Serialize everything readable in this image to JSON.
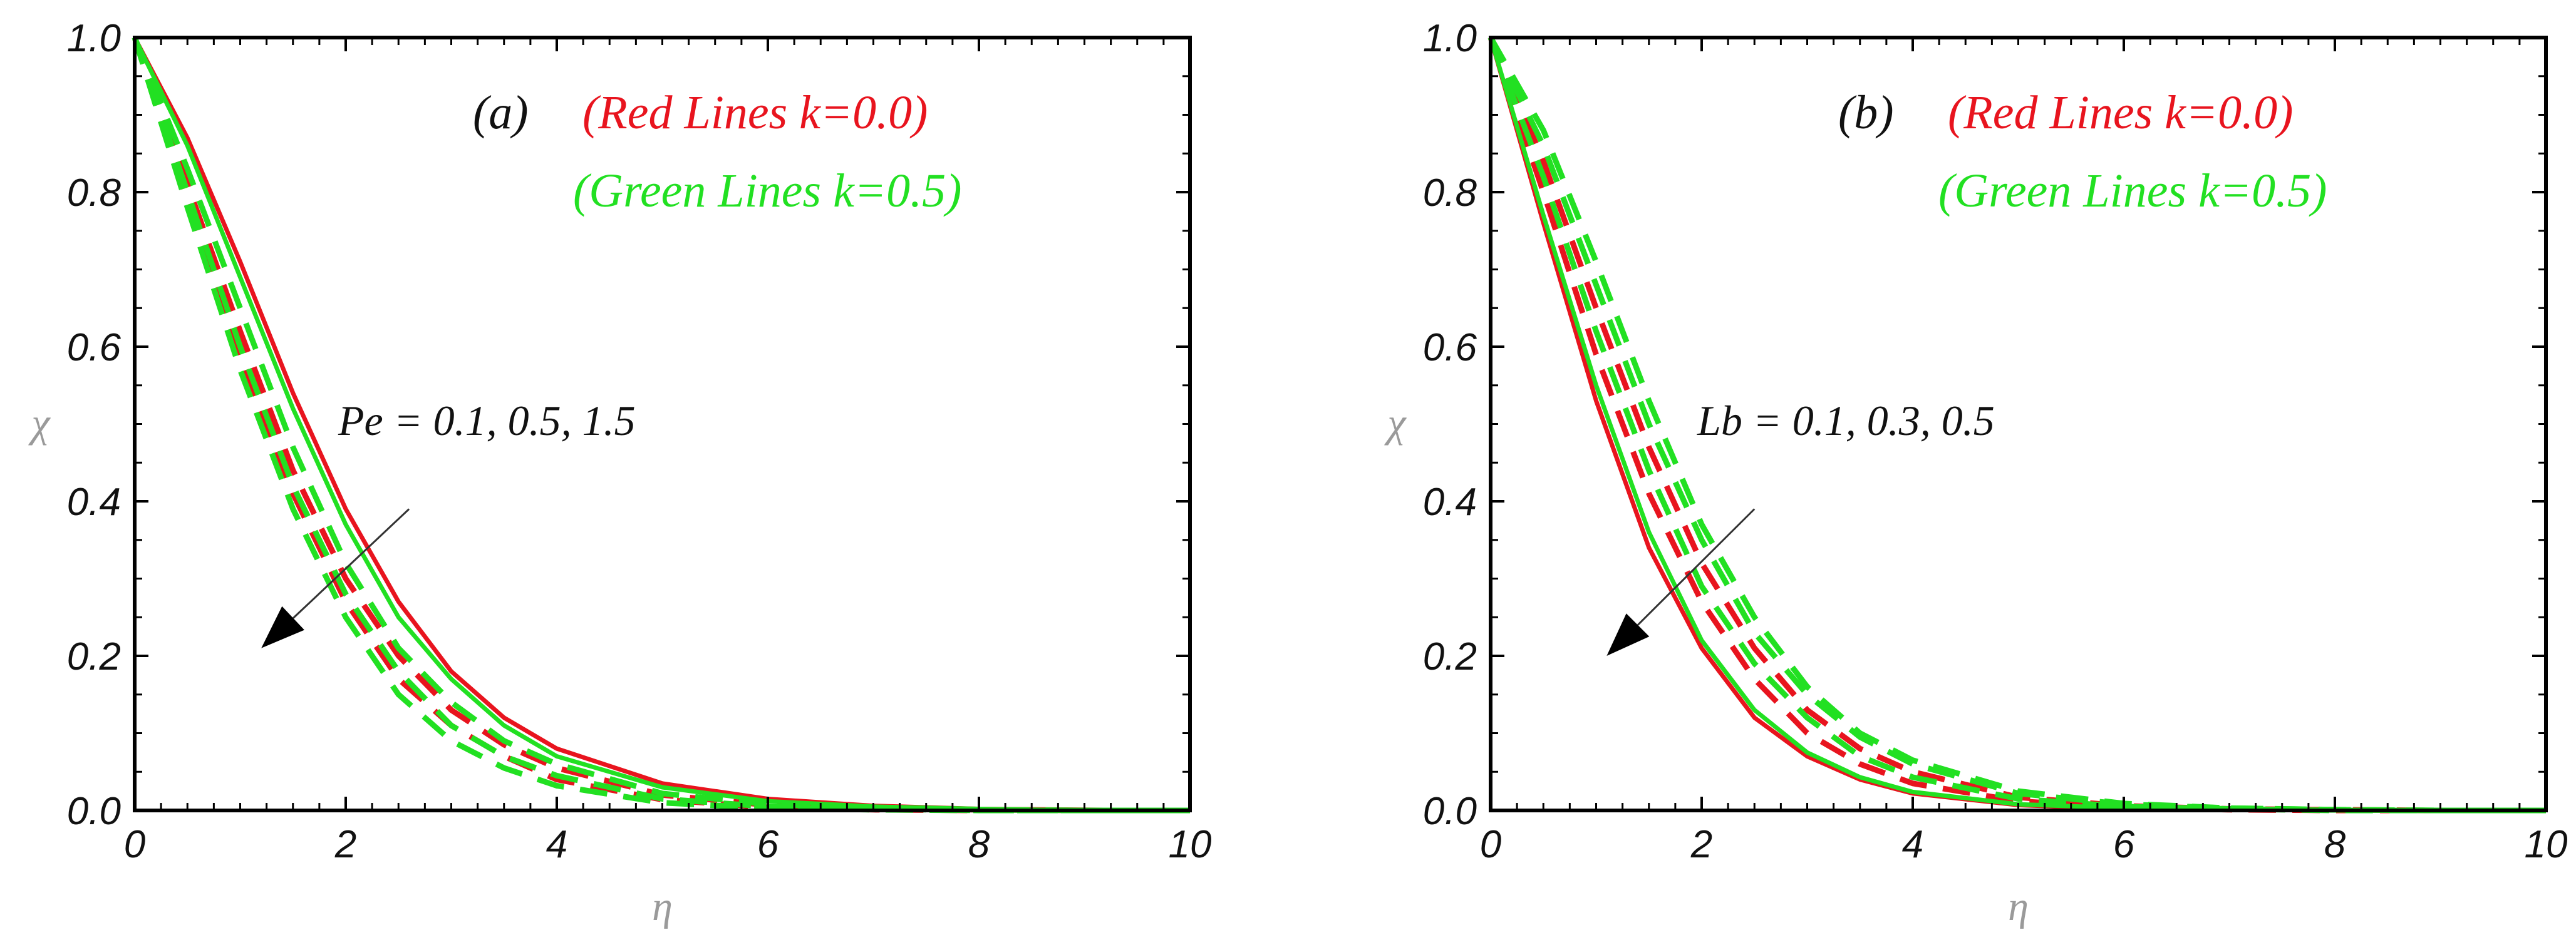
{
  "colors": {
    "red": "#e8141e",
    "green": "#22e022",
    "frame": "#000000",
    "arrow": "#333333"
  },
  "chart_data": [
    {
      "type": "line",
      "panel_label": "(a)",
      "xlabel": "η",
      "ylabel": "χ",
      "xlim": [
        0,
        10
      ],
      "ylim": [
        0,
        1
      ],
      "x_ticks": [
        "0",
        "2",
        "4",
        "6",
        "8",
        "10"
      ],
      "y_ticks": [
        "0.0",
        "0.2",
        "0.4",
        "0.6",
        "0.8",
        "1.0"
      ],
      "legend": {
        "red": "(Red Lines k=0.0)",
        "green": "(Green Lines k=0.5)"
      },
      "annotation": "Pe = 0.1, 0.5, 1.5",
      "annotation_arrow": {
        "from": [
          2.6,
          0.39
        ],
        "to": [
          1.2,
          0.21
        ]
      },
      "x": [
        0,
        0.5,
        1,
        1.5,
        2,
        2.5,
        3,
        3.5,
        4,
        5,
        6,
        7,
        8,
        9,
        10
      ],
      "series": [
        {
          "color": "red",
          "style": "solid",
          "values": [
            1.0,
            0.87,
            0.71,
            0.54,
            0.39,
            0.27,
            0.18,
            0.12,
            0.08,
            0.035,
            0.015,
            0.006,
            0.002,
            0.001,
            0.0
          ]
        },
        {
          "color": "red",
          "style": "dashed",
          "values": [
            1.0,
            0.81,
            0.62,
            0.44,
            0.3,
            0.2,
            0.13,
            0.085,
            0.055,
            0.02,
            0.007,
            0.002,
            0.001,
            0.0,
            0.0
          ]
        },
        {
          "color": "red",
          "style": "dashed",
          "values": [
            1.0,
            0.79,
            0.59,
            0.41,
            0.27,
            0.17,
            0.11,
            0.07,
            0.04,
            0.014,
            0.004,
            0.001,
            0.0,
            0.0,
            0.0
          ]
        },
        {
          "color": "green",
          "style": "solid",
          "values": [
            1.0,
            0.86,
            0.69,
            0.52,
            0.37,
            0.25,
            0.17,
            0.11,
            0.07,
            0.03,
            0.012,
            0.005,
            0.002,
            0.0,
            0.0
          ]
        },
        {
          "color": "green",
          "style": "dashed",
          "values": [
            1.0,
            0.83,
            0.65,
            0.47,
            0.32,
            0.21,
            0.14,
            0.09,
            0.06,
            0.022,
            0.008,
            0.003,
            0.001,
            0.0,
            0.0
          ]
        },
        {
          "color": "green",
          "style": "dashed",
          "values": [
            1.0,
            0.8,
            0.6,
            0.42,
            0.28,
            0.18,
            0.11,
            0.07,
            0.045,
            0.015,
            0.005,
            0.002,
            0.0,
            0.0,
            0.0
          ]
        },
        {
          "color": "green",
          "style": "dashed",
          "values": [
            1.0,
            0.78,
            0.57,
            0.39,
            0.25,
            0.15,
            0.09,
            0.055,
            0.032,
            0.01,
            0.003,
            0.001,
            0.0,
            0.0,
            0.0
          ]
        }
      ]
    },
    {
      "type": "line",
      "panel_label": "(b)",
      "xlabel": "η",
      "ylabel": "χ",
      "xlim": [
        0,
        10
      ],
      "ylim": [
        0,
        1
      ],
      "x_ticks": [
        "0",
        "2",
        "4",
        "6",
        "8",
        "10"
      ],
      "y_ticks": [
        "0.0",
        "0.2",
        "0.4",
        "0.6",
        "0.8",
        "1.0"
      ],
      "legend": {
        "red": "(Red Lines k=0.0)",
        "green": "(Green Lines k=0.5)"
      },
      "annotation": "Lb = 0.1, 0.3, 0.5",
      "annotation_arrow": {
        "from": [
          2.5,
          0.39
        ],
        "to": [
          1.1,
          0.2
        ]
      },
      "x": [
        0,
        0.5,
        1,
        1.5,
        2,
        2.5,
        3,
        3.5,
        4,
        5,
        6,
        7,
        8,
        9,
        10
      ],
      "series": [
        {
          "color": "red",
          "style": "solid",
          "values": [
            1.0,
            0.76,
            0.53,
            0.34,
            0.21,
            0.12,
            0.07,
            0.04,
            0.022,
            0.007,
            0.002,
            0.001,
            0.0,
            0.0,
            0.0
          ]
        },
        {
          "color": "red",
          "style": "dashed",
          "values": [
            1.0,
            0.8,
            0.59,
            0.41,
            0.27,
            0.17,
            0.1,
            0.06,
            0.035,
            0.012,
            0.004,
            0.001,
            0.0,
            0.0,
            0.0
          ]
        },
        {
          "color": "red",
          "style": "dashed",
          "values": [
            1.0,
            0.84,
            0.65,
            0.47,
            0.32,
            0.21,
            0.13,
            0.08,
            0.05,
            0.017,
            0.006,
            0.002,
            0.001,
            0.0,
            0.0
          ]
        },
        {
          "color": "green",
          "style": "solid",
          "values": [
            1.0,
            0.77,
            0.55,
            0.36,
            0.22,
            0.13,
            0.075,
            0.043,
            0.024,
            0.008,
            0.003,
            0.001,
            0.0,
            0.0,
            0.0
          ]
        },
        {
          "color": "green",
          "style": "dashed",
          "values": [
            1.0,
            0.82,
            0.62,
            0.44,
            0.29,
            0.19,
            0.12,
            0.07,
            0.043,
            0.015,
            0.005,
            0.002,
            0.0,
            0.0,
            0.0
          ]
        },
        {
          "color": "green",
          "style": "dashed",
          "values": [
            1.0,
            0.86,
            0.68,
            0.5,
            0.35,
            0.23,
            0.15,
            0.095,
            0.06,
            0.022,
            0.008,
            0.003,
            0.001,
            0.0,
            0.0
          ]
        },
        {
          "color": "green",
          "style": "dashed",
          "values": [
            1.0,
            0.88,
            0.71,
            0.53,
            0.37,
            0.25,
            0.16,
            0.1,
            0.065,
            0.025,
            0.009,
            0.003,
            0.001,
            0.0,
            0.0
          ]
        }
      ]
    }
  ]
}
